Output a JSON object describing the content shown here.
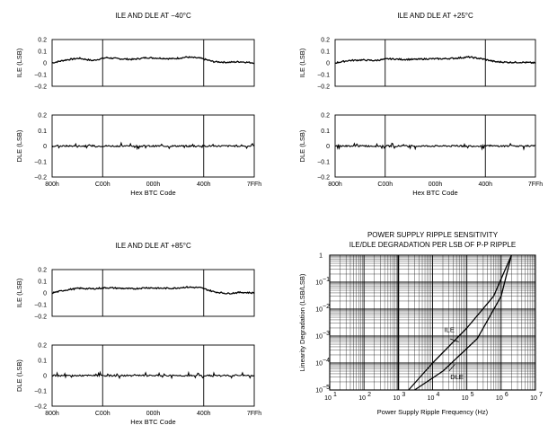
{
  "colors": {
    "ink": "#000000",
    "grid": "#000000",
    "background": "#ffffff"
  },
  "chart_data": [
    {
      "id": "neg40",
      "type": "line",
      "title": "ILE AND DLE AT −40°C",
      "xlabel": "Hex BTC Code",
      "x_ticks": [
        "800h",
        "C00h",
        "000h",
        "400h",
        "7FFh"
      ],
      "subplots": [
        {
          "ylabel": "ILE (LSB)",
          "ylim": [
            -0.2,
            0.2
          ],
          "y_ticks": [
            "0.2",
            "0.1",
            "0",
            "−0.1",
            "−0.2"
          ],
          "series": [
            {
              "name": "ILE",
              "values": [
                0.0,
                0.025,
                0.04,
                0.02,
                0.045,
                0.035,
                0.03,
                0.045,
                0.04,
                0.035,
                0.05,
                0.04,
                0.01,
                0.005,
                0.01,
                0.0
              ]
            }
          ]
        },
        {
          "ylabel": "DLE (LSB)",
          "ylim": [
            -0.2,
            0.2
          ],
          "y_ticks": [
            "0.2",
            "0.1",
            "0",
            "−0.1",
            "−0.2"
          ],
          "series": [
            {
              "name": "DLE",
              "values": [
                0.0,
                0.0,
                0.0,
                0.0
              ]
            }
          ]
        }
      ]
    },
    {
      "id": "pos25",
      "type": "line",
      "title": "ILE AND DLE AT +25°C",
      "xlabel": "Hex BTC Code",
      "x_ticks": [
        "800h",
        "C00h",
        "000h",
        "400h",
        "7FFh"
      ],
      "subplots": [
        {
          "ylabel": "ILE (LSB)",
          "ylim": [
            -0.2,
            0.2
          ],
          "y_ticks": [
            "0.2",
            "0.1",
            "0",
            "−0.1",
            "−0.2"
          ],
          "series": [
            {
              "name": "ILE",
              "values": [
                0.0,
                0.02,
                0.025,
                0.02,
                0.035,
                0.03,
                0.03,
                0.035,
                0.035,
                0.04,
                0.05,
                0.035,
                0.01,
                0.005,
                0.005,
                0.0
              ]
            }
          ]
        },
        {
          "ylabel": "DLE (LSB)",
          "ylim": [
            -0.2,
            0.2
          ],
          "y_ticks": [
            "0.2",
            "0.1",
            "0",
            "−0.1",
            "−0.2"
          ],
          "series": [
            {
              "name": "DLE",
              "values": [
                0.0,
                0.0,
                0.0,
                0.0
              ]
            }
          ]
        }
      ]
    },
    {
      "id": "pos85",
      "type": "line",
      "title": "ILE AND DLE AT +85°C",
      "xlabel": "Hex BTC Code",
      "x_ticks": [
        "800h",
        "C00h",
        "000h",
        "400h",
        "7FFh"
      ],
      "subplots": [
        {
          "ylabel": "ILE (LSB)",
          "ylim": [
            -0.2,
            0.2
          ],
          "y_ticks": [
            "0.2",
            "0.1",
            "0",
            "−0.1",
            "−0.2"
          ],
          "series": [
            {
              "name": "ILE",
              "values": [
                0.0,
                0.025,
                0.04,
                0.035,
                0.045,
                0.04,
                0.035,
                0.045,
                0.04,
                0.04,
                0.05,
                0.045,
                0.01,
                -0.005,
                0.005,
                0.0
              ]
            }
          ]
        },
        {
          "ylabel": "DLE (LSB)",
          "ylim": [
            -0.2,
            0.2
          ],
          "y_ticks": [
            "0.2",
            "0.1",
            "0",
            "−0.1",
            "−0.2"
          ],
          "series": [
            {
              "name": "DLE",
              "values": [
                0.0,
                0.0,
                0.0,
                0.0
              ]
            }
          ]
        }
      ]
    },
    {
      "id": "psrr",
      "type": "line",
      "title": "POWER SUPPLY RIPPLE SENSITIVITY",
      "subtitle": "ILE/DLE DEGRADATION PER LSB OF P-P RIPPLE",
      "xlabel": "Power Supply Ripple Frequency (Hz)",
      "ylabel": "Linearity Degradation (LSB/LSB)",
      "xscale": "log",
      "yscale": "log",
      "xlim": [
        10,
        10000000
      ],
      "ylim": [
        1e-05,
        1
      ],
      "x_ticks": [
        {
          "exp": 1,
          "label": "10"
        },
        {
          "exp": 2,
          "label": "10"
        },
        {
          "exp": 3,
          "label": "10"
        },
        {
          "exp": 4,
          "label": "10"
        },
        {
          "exp": 5,
          "label": "10"
        },
        {
          "exp": 6,
          "label": "10"
        },
        {
          "exp": 7,
          "label": "10"
        }
      ],
      "x_ticks_sup": [
        "1",
        "2",
        "3",
        "4",
        "5",
        "6",
        "7"
      ],
      "y_ticks": [
        {
          "exp": 0,
          "label": "1"
        },
        {
          "exp": -1,
          "label": "10"
        },
        {
          "exp": -2,
          "label": "10"
        },
        {
          "exp": -3,
          "label": "10"
        },
        {
          "exp": -4,
          "label": "10"
        },
        {
          "exp": -5,
          "label": "10"
        }
      ],
      "y_ticks_sup": [
        "",
        "−1",
        "−2",
        "−3",
        "−4",
        "−5"
      ],
      "series": [
        {
          "name": "ILE",
          "label": "ILE",
          "x": [
            2000,
            10000,
            100000,
            600000,
            2000000
          ],
          "y": [
            1e-05,
            0.0001,
            0.002,
            0.03,
            1
          ]
        },
        {
          "name": "DLE",
          "label": "DLE",
          "x": [
            3000,
            20000,
            200000,
            1000000,
            2000000
          ],
          "y": [
            1e-05,
            5e-05,
            0.0008,
            0.03,
            1
          ]
        }
      ]
    }
  ]
}
